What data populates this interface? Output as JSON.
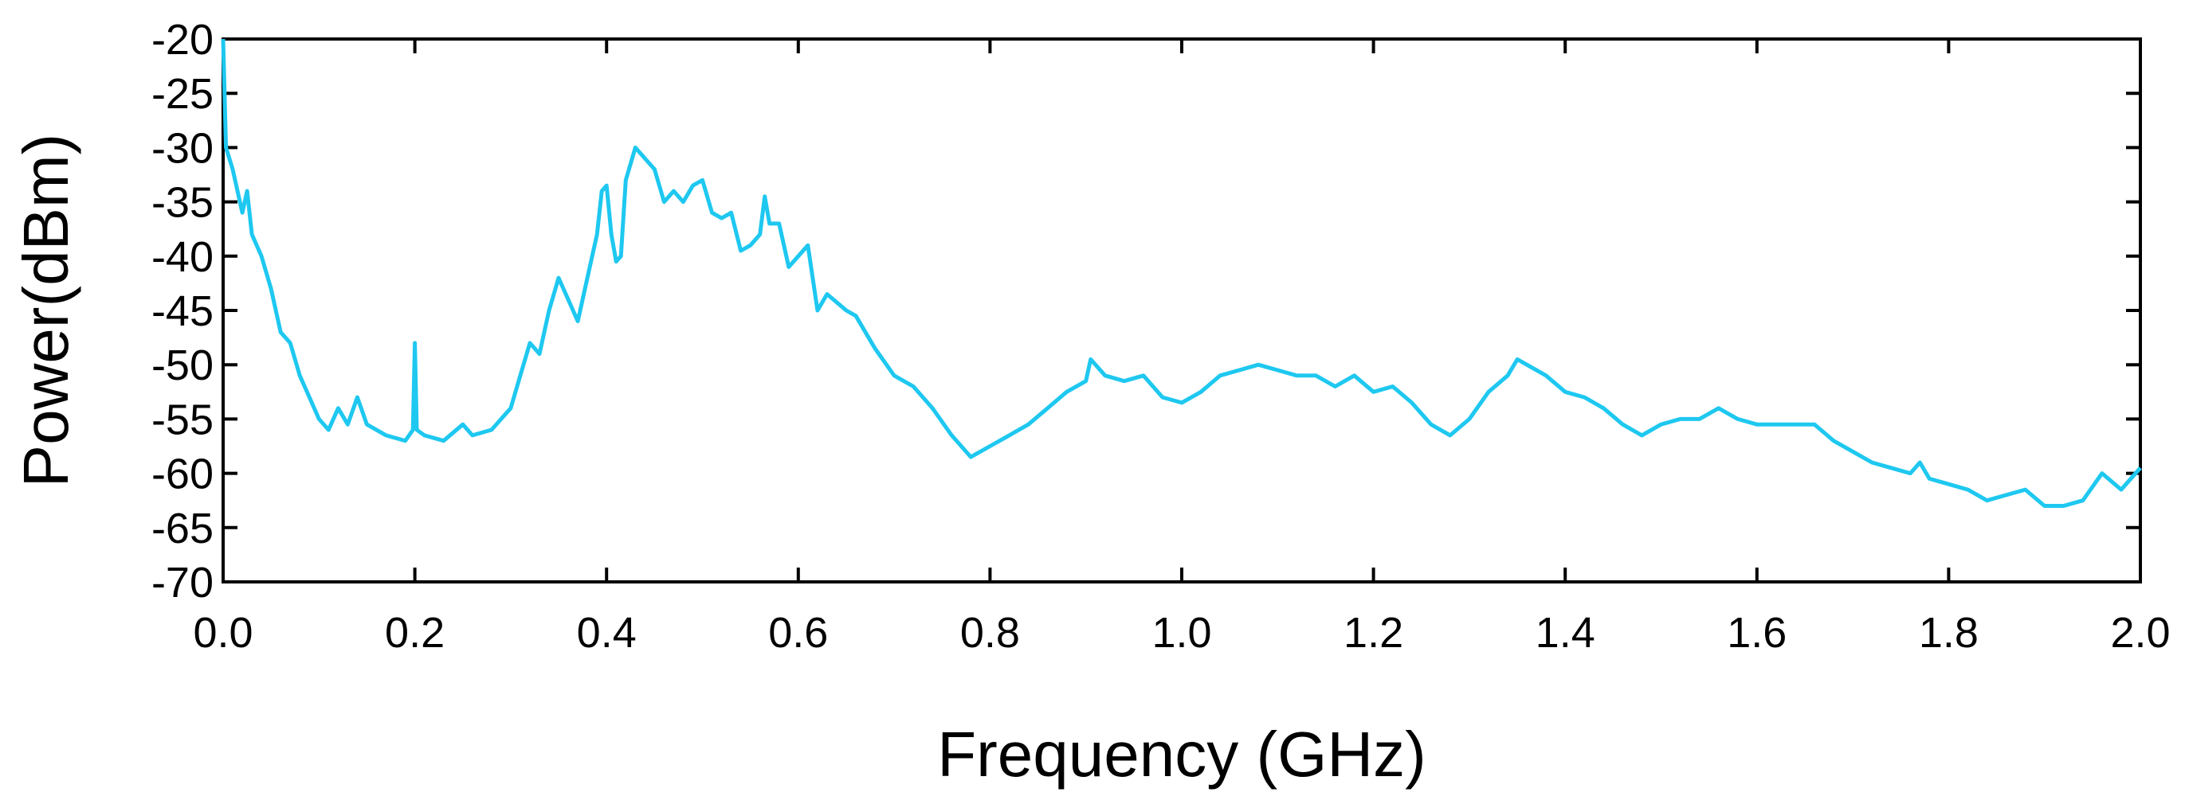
{
  "chart_data": {
    "type": "line",
    "xlabel": "Frequency (GHz)",
    "ylabel": "Power(dBm)",
    "xlim": [
      0,
      2.0
    ],
    "ylim": [
      -70,
      -20
    ],
    "xticks": [
      {
        "value": 0,
        "label": "0.0"
      },
      0.2,
      0.4,
      0.6,
      0.8,
      {
        "value": 1,
        "label": "1.0"
      },
      1.2,
      1.4,
      1.6,
      1.8,
      {
        "value": 2,
        "label": "2.0"
      }
    ],
    "yticks": [
      -20,
      -25,
      -30,
      -35,
      -40,
      -45,
      -50,
      -55,
      -60,
      -65,
      -70
    ],
    "grid": false,
    "series": [
      {
        "color": "#1ec8f0",
        "x": [
          0.0,
          0.003,
          0.01,
          0.02,
          0.025,
          0.03,
          0.04,
          0.05,
          0.06,
          0.07,
          0.08,
          0.09,
          0.1,
          0.11,
          0.12,
          0.13,
          0.14,
          0.15,
          0.17,
          0.19,
          0.198,
          0.2,
          0.202,
          0.21,
          0.23,
          0.25,
          0.26,
          0.28,
          0.3,
          0.31,
          0.32,
          0.33,
          0.34,
          0.35,
          0.36,
          0.37,
          0.38,
          0.39,
          0.395,
          0.4,
          0.405,
          0.41,
          0.415,
          0.42,
          0.43,
          0.44,
          0.45,
          0.46,
          0.47,
          0.48,
          0.49,
          0.5,
          0.51,
          0.52,
          0.53,
          0.54,
          0.55,
          0.56,
          0.565,
          0.57,
          0.58,
          0.59,
          0.6,
          0.61,
          0.62,
          0.63,
          0.65,
          0.66,
          0.68,
          0.7,
          0.72,
          0.74,
          0.76,
          0.78,
          0.8,
          0.82,
          0.84,
          0.86,
          0.88,
          0.9,
          0.905,
          0.92,
          0.94,
          0.96,
          0.98,
          1.0,
          1.02,
          1.04,
          1.06,
          1.08,
          1.1,
          1.12,
          1.14,
          1.16,
          1.18,
          1.2,
          1.22,
          1.24,
          1.26,
          1.28,
          1.3,
          1.32,
          1.34,
          1.35,
          1.36,
          1.38,
          1.4,
          1.42,
          1.44,
          1.46,
          1.48,
          1.5,
          1.52,
          1.54,
          1.56,
          1.58,
          1.6,
          1.62,
          1.64,
          1.66,
          1.68,
          1.7,
          1.72,
          1.74,
          1.76,
          1.77,
          1.78,
          1.8,
          1.82,
          1.84,
          1.86,
          1.88,
          1.9,
          1.92,
          1.94,
          1.96,
          1.98,
          2.0
        ],
        "values": [
          -20,
          -30,
          -32,
          -36,
          -34,
          -38,
          -40,
          -43,
          -47,
          -48,
          -51,
          -53,
          -55,
          -56,
          -54,
          -55.5,
          -53,
          -55.5,
          -56.5,
          -57,
          -56,
          -48,
          -56,
          -56.5,
          -57,
          -55.5,
          -56.5,
          -56,
          -54,
          -51,
          -48,
          -49,
          -45,
          -42,
          -44,
          -46,
          -42,
          -38,
          -34,
          -33.5,
          -38,
          -40.5,
          -40,
          -33,
          -30,
          -31,
          -32,
          -35,
          -34,
          -35,
          -33.5,
          -33,
          -36,
          -36.5,
          -36,
          -39.5,
          -39,
          -38,
          -34.5,
          -37,
          -37,
          -41,
          -40,
          -39,
          -45,
          -43.5,
          -45,
          -45.5,
          -48.5,
          -51,
          -52,
          -54,
          -56.5,
          -58.5,
          -57.5,
          -56.5,
          -55.5,
          -54,
          -52.5,
          -51.5,
          -49.5,
          -51,
          -51.5,
          -51,
          -53,
          -53.5,
          -52.5,
          -51,
          -50.5,
          -50,
          -50.5,
          -51,
          -51,
          -52,
          -51,
          -52.5,
          -52,
          -53.5,
          -55.5,
          -56.5,
          -55,
          -52.5,
          -51,
          -49.5,
          -50,
          -51,
          -52.5,
          -53,
          -54,
          -55.5,
          -56.5,
          -55.5,
          -55,
          -55,
          -54,
          -55,
          -55.5,
          -55.5,
          -55.5,
          -55.5,
          -57,
          -58,
          -59,
          -59.5,
          -60,
          -59,
          -60.5,
          -61,
          -61.5,
          -62.5,
          -62,
          -61.5,
          -63,
          -63,
          -62.5,
          -60,
          -61.5,
          -59.5
        ]
      }
    ]
  }
}
